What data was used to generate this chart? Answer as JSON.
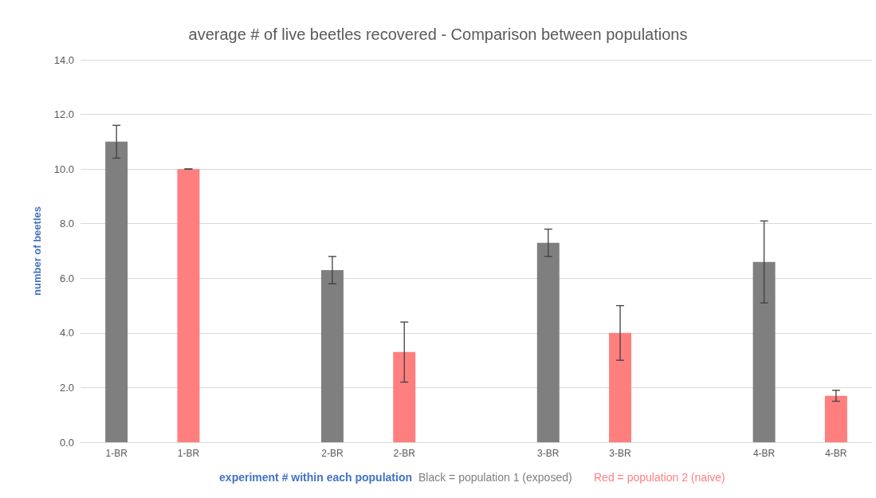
{
  "chart_data": {
    "type": "bar",
    "title": "average # of live beetles recovered - Comparison between populations",
    "xlabel": "experiment # within each population",
    "ylabel": "number of beetles",
    "annotations": [
      "Black = population 1 (exposed)",
      "Red = population 2 (naive)"
    ],
    "categories": [
      "1-BR",
      "1-BR",
      null,
      "2-BR",
      "2-BR",
      null,
      "3-BR",
      "3-BR",
      null,
      "4-BR",
      "4-BR"
    ],
    "values": [
      11.0,
      10.0,
      null,
      6.3,
      3.3,
      null,
      7.3,
      4.0,
      null,
      6.6,
      1.7
    ],
    "errors": [
      0.6,
      0,
      null,
      0.5,
      1.1,
      null,
      0.5,
      1.0,
      null,
      1.5,
      0.2
    ],
    "colors": [
      "#7f7f7f",
      "#ff7f7f",
      null,
      "#7f7f7f",
      "#ff7f7f",
      null,
      "#7f7f7f",
      "#ff7f7f",
      null,
      "#7f7f7f",
      "#ff7f7f"
    ],
    "ylim": [
      0,
      14
    ],
    "yticks": [
      {
        "value": 0,
        "label": "0.0"
      },
      {
        "value": 2,
        "label": "2.0"
      },
      {
        "value": 4,
        "label": "4.0"
      },
      {
        "value": 6,
        "label": "6.0"
      },
      {
        "value": 8,
        "label": "8.0"
      },
      {
        "value": 10,
        "label": "10.0"
      },
      {
        "value": 12,
        "label": "12.0"
      },
      {
        "value": 14,
        "label": "14.0"
      }
    ],
    "grid": "y"
  }
}
